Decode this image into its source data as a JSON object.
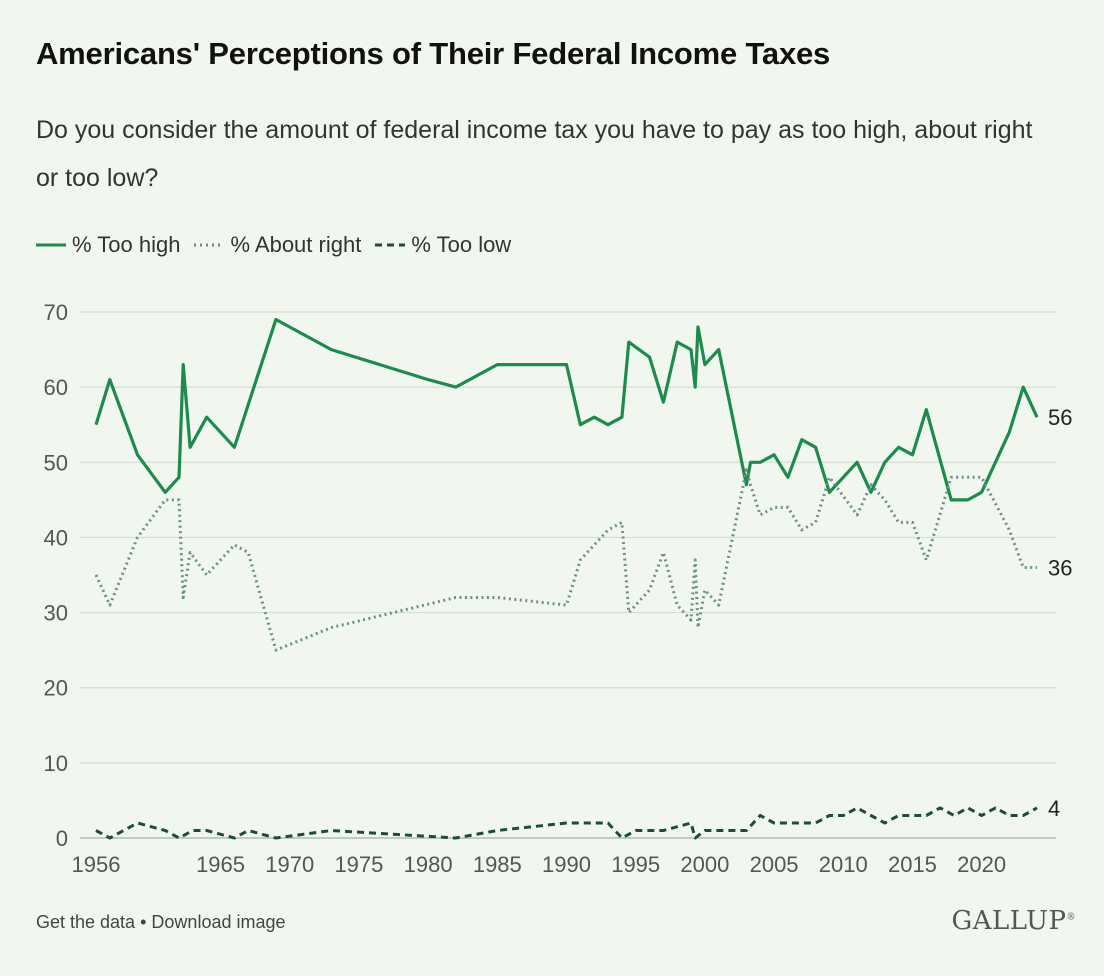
{
  "header": {
    "title": "Americans' Perceptions of Their Federal Income Taxes",
    "subtitle": "Do you consider the amount of federal income tax you have to pay as too high, about right or too low?"
  },
  "colors": {
    "too_high": "#1e8a4c",
    "about_right": "#6b8f8c",
    "too_low": "#1f4a44",
    "grid": "#d4dcd4",
    "axis_text": "#555555"
  },
  "footer": {
    "get_data": "Get the data",
    "separator": "•",
    "download": "Download image",
    "logo": "GALLUP"
  },
  "chart_data": {
    "type": "line",
    "title": "Americans' Perceptions of Their Federal Income Taxes",
    "xlabel": "",
    "ylabel": "",
    "xlim": [
      1956,
      2024
    ],
    "ylim": [
      0,
      70
    ],
    "grid": true,
    "legend_position": "top-left",
    "y_ticks": [
      0,
      10,
      20,
      30,
      40,
      50,
      60,
      70
    ],
    "x_ticks": [
      1956,
      1965,
      1970,
      1975,
      1980,
      1985,
      1990,
      1995,
      2000,
      2005,
      2010,
      2015,
      2020
    ],
    "series": [
      {
        "name": "% Too high",
        "style": "solid",
        "end_label": "56",
        "points": [
          [
            1956,
            55
          ],
          [
            1957,
            61
          ],
          [
            1959,
            51
          ],
          [
            1961,
            46
          ],
          [
            1962,
            48
          ],
          [
            1962.3,
            63
          ],
          [
            1962.8,
            52
          ],
          [
            1964,
            56
          ],
          [
            1966,
            52
          ],
          [
            1969,
            69
          ],
          [
            1973,
            65
          ],
          [
            1980,
            61
          ],
          [
            1982,
            60
          ],
          [
            1985,
            63
          ],
          [
            1988,
            63
          ],
          [
            1990,
            63
          ],
          [
            1991,
            55
          ],
          [
            1992,
            56
          ],
          [
            1993,
            55
          ],
          [
            1994,
            56
          ],
          [
            1994.5,
            66
          ],
          [
            1996,
            64
          ],
          [
            1997,
            58
          ],
          [
            1998,
            66
          ],
          [
            1999,
            65
          ],
          [
            1999.3,
            60
          ],
          [
            1999.5,
            68
          ],
          [
            2000,
            63
          ],
          [
            2001,
            65
          ],
          [
            2003,
            47
          ],
          [
            2003.3,
            50
          ],
          [
            2004,
            50
          ],
          [
            2005,
            51
          ],
          [
            2006,
            48
          ],
          [
            2007,
            53
          ],
          [
            2008,
            52
          ],
          [
            2009,
            46
          ],
          [
            2011,
            50
          ],
          [
            2012,
            46
          ],
          [
            2013,
            50
          ],
          [
            2014,
            52
          ],
          [
            2015,
            51
          ],
          [
            2016,
            57
          ],
          [
            2017.8,
            45
          ],
          [
            2019,
            45
          ],
          [
            2020,
            46
          ],
          [
            2022,
            54
          ],
          [
            2023,
            60
          ],
          [
            2024,
            56
          ]
        ]
      },
      {
        "name": "% About right",
        "style": "dotted",
        "end_label": "36",
        "points": [
          [
            1956,
            35
          ],
          [
            1957,
            31
          ],
          [
            1959,
            40
          ],
          [
            1961,
            45
          ],
          [
            1962,
            45
          ],
          [
            1962.3,
            32
          ],
          [
            1962.8,
            38
          ],
          [
            1964,
            35
          ],
          [
            1966,
            39
          ],
          [
            1967,
            38
          ],
          [
            1969,
            25
          ],
          [
            1973,
            28
          ],
          [
            1982,
            32
          ],
          [
            1985,
            32
          ],
          [
            1990,
            31
          ],
          [
            1991,
            37
          ],
          [
            1993,
            41
          ],
          [
            1994,
            42
          ],
          [
            1994.5,
            30
          ],
          [
            1996,
            33
          ],
          [
            1997,
            38
          ],
          [
            1998,
            31
          ],
          [
            1999,
            29
          ],
          [
            1999.3,
            37
          ],
          [
            1999.5,
            28
          ],
          [
            2000,
            33
          ],
          [
            2001,
            31
          ],
          [
            2003,
            49
          ],
          [
            2003.3,
            47
          ],
          [
            2004,
            43
          ],
          [
            2005,
            44
          ],
          [
            2006,
            44
          ],
          [
            2007,
            41
          ],
          [
            2008,
            42
          ],
          [
            2009,
            48
          ],
          [
            2011,
            43
          ],
          [
            2012,
            47
          ],
          [
            2013,
            45
          ],
          [
            2014,
            42
          ],
          [
            2015,
            42
          ],
          [
            2016,
            37
          ],
          [
            2017.8,
            48
          ],
          [
            2019,
            48
          ],
          [
            2020,
            48
          ],
          [
            2022,
            41
          ],
          [
            2023,
            36
          ],
          [
            2024,
            36
          ]
        ]
      },
      {
        "name": "% Too low",
        "style": "dashed",
        "end_label": "4",
        "points": [
          [
            1956,
            1
          ],
          [
            1957,
            0
          ],
          [
            1959,
            2
          ],
          [
            1961,
            1
          ],
          [
            1962,
            0
          ],
          [
            1963,
            1
          ],
          [
            1964,
            1
          ],
          [
            1966,
            0
          ],
          [
            1967,
            1
          ],
          [
            1969,
            0
          ],
          [
            1973,
            1
          ],
          [
            1982,
            0
          ],
          [
            1985,
            1
          ],
          [
            1990,
            2
          ],
          [
            1993,
            2
          ],
          [
            1994,
            0
          ],
          [
            1995,
            1
          ],
          [
            1997,
            1
          ],
          [
            1999,
            2
          ],
          [
            1999.3,
            0
          ],
          [
            2000,
            1
          ],
          [
            2002,
            1
          ],
          [
            2003,
            1
          ],
          [
            2004,
            3
          ],
          [
            2005,
            2
          ],
          [
            2006,
            2
          ],
          [
            2008,
            2
          ],
          [
            2009,
            3
          ],
          [
            2010,
            3
          ],
          [
            2011,
            4
          ],
          [
            2012,
            3
          ],
          [
            2013,
            2
          ],
          [
            2014,
            3
          ],
          [
            2016,
            3
          ],
          [
            2017,
            4
          ],
          [
            2018,
            3
          ],
          [
            2019,
            4
          ],
          [
            2020,
            3
          ],
          [
            2021,
            4
          ],
          [
            2022,
            3
          ],
          [
            2023,
            3
          ],
          [
            2024,
            4
          ]
        ]
      }
    ]
  }
}
